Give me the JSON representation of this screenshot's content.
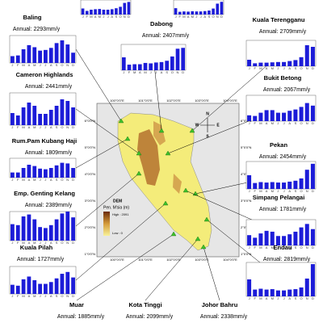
{
  "map": {
    "legend_title": "DEM",
    "legend_subtitle": "Pen. M'sia (m)",
    "high": "High : 2091",
    "low": "Low : 0",
    "lon_labels": [
      "100°0'0\"E",
      "101°0'0\"E",
      "102°0'0\"E",
      "103°0'0\"E",
      "104°0'0\"E"
    ],
    "lat_labels": [
      "6°0'0\"N",
      "5°0'0\"N",
      "4°0'0\"N",
      "3°0'0\"N",
      "2°0'0\"N",
      "1°0'0\"N"
    ],
    "compass": [
      "N",
      "E",
      "S",
      "W"
    ]
  },
  "months": [
    "J",
    "F",
    "M",
    "A",
    "M",
    "J",
    "J",
    "A",
    "S",
    "O",
    "N",
    "D"
  ],
  "bar_color": "#1c1cd8",
  "stations": [
    {
      "name": "Baling",
      "annual": "Annual: 2293mm/y",
      "ylim": [
        0,
        400
      ],
      "values": [
        100,
        110,
        200,
        260,
        230,
        180,
        190,
        220,
        290,
        330,
        270,
        150
      ]
    },
    {
      "name": "Cameron Highlands",
      "annual": "Annual: 2441mm/y",
      "ylim": [
        0,
        400
      ],
      "values": [
        150,
        120,
        220,
        280,
        240,
        140,
        140,
        190,
        240,
        320,
        300,
        220
      ]
    },
    {
      "name": "Rum.Pam Kubang Haji",
      "annual": "Annual: 1809mm/y",
      "ylim": [
        0,
        300
      ],
      "values": [
        80,
        80,
        150,
        200,
        180,
        140,
        130,
        150,
        190,
        230,
        220,
        150
      ]
    },
    {
      "name": "Emp. Genting Kelang",
      "annual": "Annual: 2389mm/y",
      "ylim": [
        0,
        300
      ],
      "values": [
        170,
        160,
        250,
        270,
        220,
        140,
        130,
        160,
        220,
        280,
        300,
        240
      ]
    },
    {
      "name": "Kuala Pilah",
      "annual": "Annual: 1727mm/y",
      "ylim": [
        0,
        300
      ],
      "values": [
        100,
        90,
        160,
        190,
        150,
        110,
        110,
        130,
        170,
        220,
        240,
        180
      ]
    },
    {
      "name": "Dabong",
      "annual": "Annual: 2407mm/y",
      "ylim": [
        0,
        600
      ],
      "values": [
        300,
        130,
        140,
        140,
        170,
        160,
        180,
        190,
        220,
        320,
        500,
        520
      ]
    },
    {
      "name": "Kuala Terengganu",
      "annual": "Annual: 2709mm/y",
      "ylim": [
        0,
        800
      ],
      "values": [
        200,
        90,
        110,
        110,
        120,
        130,
        130,
        160,
        190,
        280,
        650,
        600
      ]
    },
    {
      "name": "Bukit Betong",
      "annual": "Annual: 2067mm/y",
      "ylim": [
        0,
        400
      ],
      "values": [
        90,
        80,
        130,
        170,
        170,
        130,
        130,
        160,
        180,
        220,
        280,
        240
      ]
    },
    {
      "name": "Pekan",
      "annual": "Annual: 2454mm/y",
      "ylim": [
        0,
        600
      ],
      "values": [
        300,
        130,
        150,
        140,
        150,
        140,
        140,
        160,
        180,
        230,
        420,
        550
      ]
    },
    {
      "name": "Simpang Pelangai",
      "annual": "Annual: 1781mm/y",
      "ylim": [
        0,
        300
      ],
      "values": [
        120,
        90,
        140,
        170,
        160,
        110,
        110,
        130,
        160,
        210,
        250,
        190
      ]
    },
    {
      "name": "Endau",
      "annual": "Annual: 2819mm/y",
      "ylim": [
        0,
        800
      ],
      "values": [
        400,
        160,
        180,
        160,
        170,
        140,
        140,
        160,
        170,
        210,
        420,
        760
      ]
    },
    {
      "name": "Muar",
      "annual": "Annual: 1885mm/y"
    },
    {
      "name": "Kota Tinggi",
      "annual": "Annual: 2099mm/y"
    },
    {
      "name": "Johor Bahru",
      "annual": "Annual: 2338mm/y"
    },
    {
      "ylim": [
        0,
        600
      ],
      "values": [
        250,
        150,
        200,
        220,
        230,
        200,
        200,
        220,
        260,
        320,
        480,
        520
      ]
    },
    {
      "ylim": [
        0,
        800
      ],
      "values": [
        350,
        150,
        170,
        160,
        180,
        170,
        170,
        190,
        220,
        330,
        600,
        700
      ]
    }
  ]
}
